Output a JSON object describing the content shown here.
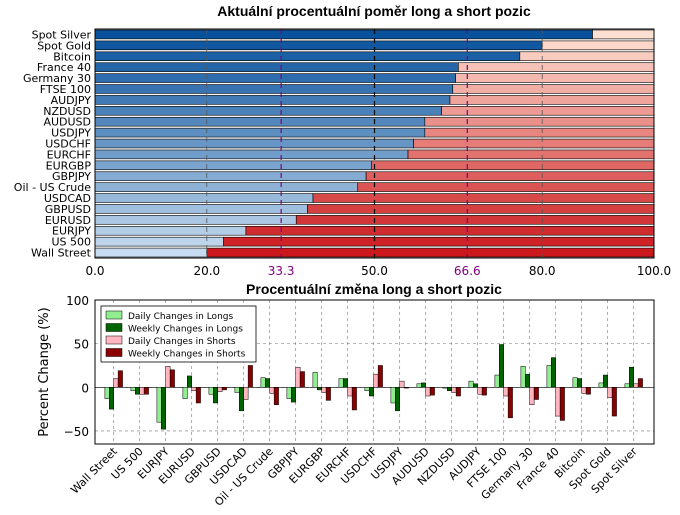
{
  "chart_data": [
    {
      "type": "bar",
      "orientation": "horizontal",
      "stacked": true,
      "title": "Aktuální procentuální poměr long a short pozic",
      "categories": [
        "Spot Silver",
        "Spot Gold",
        "Bitcoin",
        "France 40",
        "Germany 30",
        "FTSE 100",
        "AUDJPY",
        "NZDUSD",
        "AUDUSD",
        "USDJPY",
        "USDCHF",
        "EURCHF",
        "EURGBP",
        "GBPJPY",
        "Oil - US Crude",
        "USDCAD",
        "GBPUSD",
        "EURUSD",
        "EURJPY",
        "US 500",
        "Wall Street"
      ],
      "long_values": [
        89,
        80,
        76,
        65,
        64.5,
        64,
        63.5,
        62,
        59,
        59,
        57,
        56,
        49.5,
        48.5,
        47,
        39,
        38,
        36,
        27,
        23,
        20
      ],
      "xlim": [
        0,
        100
      ],
      "xticks": [
        "0.0",
        "20.0",
        "33.3",
        "50.0",
        "66.6",
        "80.0",
        "100.0"
      ],
      "reference_lines": [
        "33.3",
        "50.0",
        "66.6"
      ],
      "grid": true,
      "colors": {
        "long": "blues",
        "short": "reds"
      }
    },
    {
      "type": "bar",
      "title": "Procentuální změna long a short pozic",
      "ylabel": "Percent Change (%)",
      "ylim": [
        -65,
        100
      ],
      "yticks": [
        "−50",
        "0",
        "50",
        "100"
      ],
      "grid": true,
      "legend_position": "top-left",
      "categories": [
        "Wall Street",
        "US 500",
        "EURJPY",
        "EURUSD",
        "GBPUSD",
        "USDCAD",
        "Oil - US Crude",
        "GBPJPY",
        "EURGBP",
        "EURCHF",
        "USDCHF",
        "USDJPY",
        "AUDUSD",
        "NZDUSD",
        "AUDJPY",
        "FTSE 100",
        "Germany 30",
        "France 40",
        "Bitcoin",
        "Spot Gold",
        "Spot Silver"
      ],
      "series": [
        {
          "name": "Daily Changes in Longs",
          "color": "#90ee90",
          "values": [
            -13,
            -4,
            -40,
            -13,
            -8,
            -6,
            11,
            -13,
            17,
            10,
            -4,
            -18,
            4,
            -1,
            7,
            14,
            24,
            25,
            11,
            5,
            4
          ]
        },
        {
          "name": "Weekly Changes in Longs",
          "color": "#006400",
          "values": [
            -25,
            -8,
            -48,
            13,
            -18,
            -27,
            10,
            -17,
            -3,
            10,
            -10,
            -27,
            5,
            -4,
            4,
            49,
            15,
            34,
            10,
            14,
            23
          ]
        },
        {
          "name": "Daily Changes in Shorts",
          "color": "#ffb6c1",
          "values": [
            10,
            -8,
            24,
            -4,
            -5,
            -14,
            -7,
            23,
            -6,
            -10,
            15,
            7,
            -10,
            -6,
            -8,
            -10,
            -20,
            -33,
            -7,
            -12,
            4
          ]
        },
        {
          "name": "Weekly Changes in Shorts",
          "color": "#8b0000",
          "values": [
            19,
            -8,
            20,
            -18,
            -3,
            25,
            -20,
            18,
            -15,
            -26,
            25,
            0,
            -9,
            -10,
            -9,
            -35,
            -14,
            -38,
            -8,
            -33,
            10
          ]
        }
      ]
    }
  ]
}
